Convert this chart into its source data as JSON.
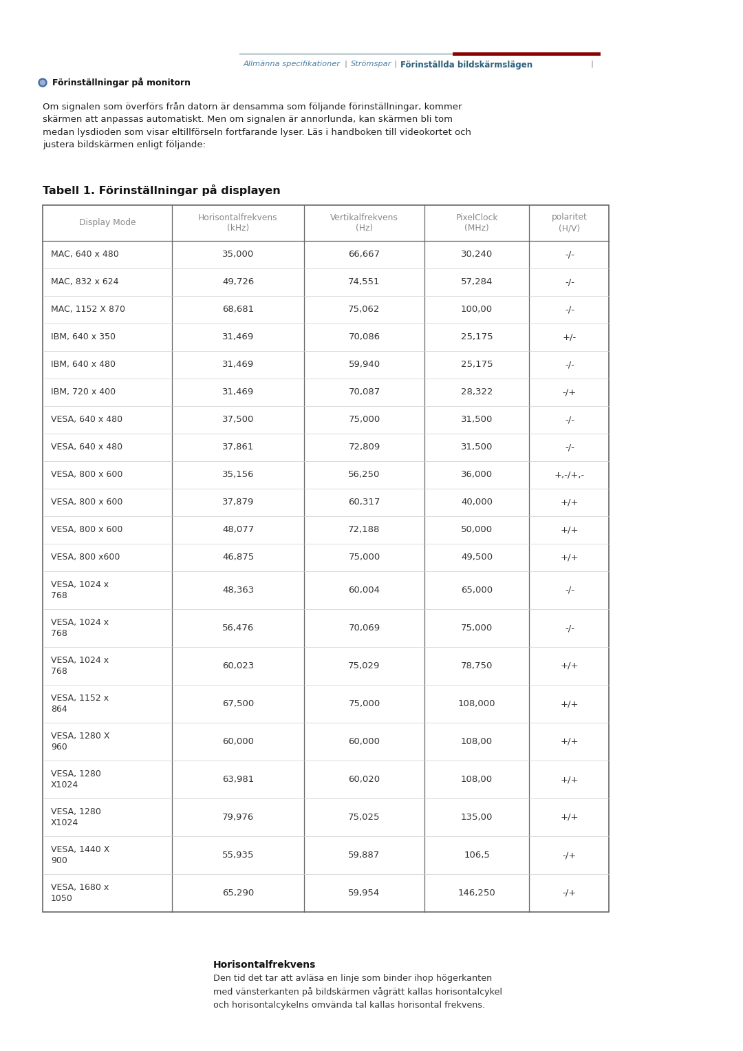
{
  "page_title_nav": [
    "Allmänna specifikationer",
    "Strömspar",
    "Förinställda bildskärmslägen"
  ],
  "nav_line_color": "#8B0000",
  "nav_text_color": "#4a7fa5",
  "section_title": "Förinställningar på monitorn",
  "intro_text": "Om signalen som överförs från datorn är densamma som följande förinställningar, kommer\nskärmen att anpassas automatiskt. Men om signalen är annorlunda, kan skärmen bli tom\nmedan lysdioden som visar eltillförseln fortfarande lyser. Läs i handboken till videokortet och\njustera bildskärmen enligt följande:",
  "table_title": "Tabell 1. Förinställningar på displayen",
  "col_headers": [
    "Display Mode",
    "Horisontalfrekvens\n(kHz)",
    "Vertikalfrekvens\n(Hz)",
    "PixelClock\n(MHz)",
    "polaritet\n(H/V)"
  ],
  "rows": [
    [
      "MAC, 640 x 480",
      "35,000",
      "66,667",
      "30,240",
      "-/-"
    ],
    [
      "MAC, 832 x 624",
      "49,726",
      "74,551",
      "57,284",
      "-/-"
    ],
    [
      "MAC, 1152 X 870",
      "68,681",
      "75,062",
      "100,00",
      "-/-"
    ],
    [
      "IBM, 640 x 350",
      "31,469",
      "70,086",
      "25,175",
      "+/-"
    ],
    [
      "IBM, 640 x 480",
      "31,469",
      "59,940",
      "25,175",
      "-/-"
    ],
    [
      "IBM, 720 x 400",
      "31,469",
      "70,087",
      "28,322",
      "-/+"
    ],
    [
      "VESA, 640 x 480",
      "37,500",
      "75,000",
      "31,500",
      "-/-"
    ],
    [
      "VESA, 640 x 480",
      "37,861",
      "72,809",
      "31,500",
      "-/-"
    ],
    [
      "VESA, 800 x 600",
      "35,156",
      "56,250",
      "36,000",
      "+,-/+,-"
    ],
    [
      "VESA, 800 x 600",
      "37,879",
      "60,317",
      "40,000",
      "+/+"
    ],
    [
      "VESA, 800 x 600",
      "48,077",
      "72,188",
      "50,000",
      "+/+"
    ],
    [
      "VESA, 800 x600",
      "46,875",
      "75,000",
      "49,500",
      "+/+"
    ],
    [
      "VESA, 1024 x\n768",
      "48,363",
      "60,004",
      "65,000",
      "-/-"
    ],
    [
      "VESA, 1024 x\n768",
      "56,476",
      "70,069",
      "75,000",
      "-/-"
    ],
    [
      "VESA, 1024 x\n768",
      "60,023",
      "75,029",
      "78,750",
      "+/+"
    ],
    [
      "VESA, 1152 x\n864",
      "67,500",
      "75,000",
      "108,000",
      "+/+"
    ],
    [
      "VESA, 1280 X\n960",
      "60,000",
      "60,000",
      "108,00",
      "+/+"
    ],
    [
      "VESA, 1280\nX1024",
      "63,981",
      "60,020",
      "108,00",
      "+/+"
    ],
    [
      "VESA, 1280\nX1024",
      "79,976",
      "75,025",
      "135,00",
      "+/+"
    ],
    [
      "VESA, 1440 X\n900",
      "55,935",
      "59,887",
      "106,5",
      "-/+"
    ],
    [
      "VESA, 1680 x\n1050",
      "65,290",
      "59,954",
      "146,250",
      "-/+"
    ]
  ],
  "footer_title": "Horisontalfrekvens",
  "footer_text": "Den tid det tar att avläsa en linje som binder ihop högerkanten\nmed vänsterkanten på bildskärmen vågrätt kallas horisontalcykel\noch horisontalcykelns omvända tal kallas horisontal frekvens.",
  "bg_color": "#ffffff",
  "table_border_color": "#666666",
  "header_text_color": "#888888",
  "row_text_color": "#333333",
  "nav_gray_color": "#4a7a8a",
  "nav_sep_color": "#888888",
  "nav_active_color": "#2c5f7a",
  "nav_underline_gray": "#8a9aa0",
  "nav_underline_red": "#8B0000"
}
